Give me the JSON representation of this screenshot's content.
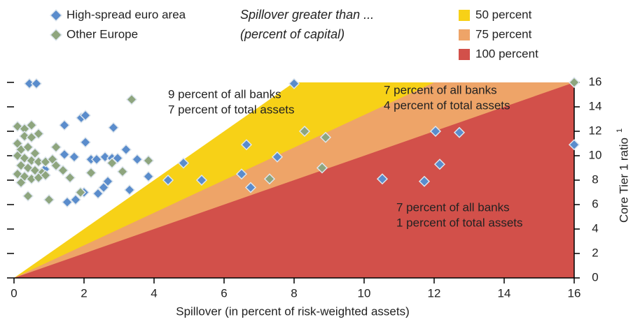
{
  "chart_data": {
    "type": "scatter",
    "legend_title": [
      "Spillover greater than ...",
      "(percent of capital)"
    ],
    "xlabel": "Spillover (in percent of risk-weighted assets)",
    "ylabel": "Core Tier 1 ratio",
    "ylabel_note": "1",
    "xlim": [
      0,
      16
    ],
    "xticks": [
      0,
      2,
      4,
      6,
      8,
      10,
      12,
      14,
      16
    ],
    "ylim": [
      0,
      16
    ],
    "yticks": [
      0,
      2,
      4,
      6,
      8,
      10,
      12,
      14,
      16
    ],
    "regions": [
      {
        "label": "50 percent",
        "threshold": 50,
        "color": "#f7d117"
      },
      {
        "label": "75 percent",
        "threshold": 75,
        "color": "#eea468"
      },
      {
        "label": "100 percent",
        "threshold": 100,
        "color": "#d2504a"
      }
    ],
    "annotations": [
      [
        "9 percent of all banks",
        "7 percent of total assets"
      ],
      [
        "7 percent of all banks",
        "4 percent of total assets"
      ],
      [
        "7 percent of all banks",
        "1 percent of total assets"
      ]
    ],
    "series": [
      {
        "name": "High-spread euro area",
        "color": "#5a8ccc",
        "x": [
          0.44,
          0.64,
          8,
          1.44,
          1.92,
          2.04,
          2.84,
          2.04,
          1.44,
          1.72,
          0.88,
          2.2,
          2.36,
          2.6,
          2.8,
          3.2,
          2.96,
          3.52,
          2.68,
          2.56,
          2.4,
          2.0,
          1.52,
          1.76,
          3.3,
          3.84,
          4.4,
          4.84,
          5.36,
          6.5,
          6.64,
          6.76,
          7.52,
          10.52,
          11.72,
          12.04,
          12.16,
          12.72,
          16
        ],
        "values": [
          15.9,
          15.9,
          15.9,
          12.5,
          13.1,
          13.3,
          12.3,
          11.1,
          10.1,
          9.9,
          8.9,
          9.7,
          9.7,
          9.9,
          9.8,
          10.5,
          9.8,
          9.7,
          7.9,
          7.4,
          6.9,
          7.0,
          6.2,
          6.4,
          7.2,
          8.3,
          8.0,
          9.4,
          8.0,
          8.5,
          10.9,
          7.4,
          9.9,
          8.1,
          7.9,
          12.0,
          9.3,
          11.9,
          10.9
        ]
      },
      {
        "name": "Other Europe",
        "color": "#8ea57e",
        "x": [
          0.1,
          0.3,
          0.5,
          0.3,
          0.1,
          0.5,
          0.7,
          0.2,
          0.4,
          0.6,
          0.1,
          0.3,
          0.5,
          0.7,
          0.9,
          0.2,
          0.4,
          0.6,
          0.8,
          0.1,
          0.3,
          0.5,
          0.7,
          0.9,
          1.1,
          1.2,
          1.4,
          1.6,
          0.4,
          1.0,
          1.2,
          0.2,
          3.36,
          3.84,
          3.1,
          2.2,
          2.8,
          1.9,
          8.3,
          8.9,
          7.3,
          8.8,
          16
        ],
        "values": [
          12.4,
          12.2,
          12.5,
          11.6,
          11.0,
          11.5,
          11.8,
          10.5,
          10.7,
          10.2,
          10.0,
          9.8,
          9.6,
          9.5,
          9.5,
          9.2,
          9.0,
          8.8,
          8.6,
          8.5,
          8.3,
          8.1,
          8.2,
          8.4,
          9.7,
          10.7,
          8.8,
          8.2,
          6.7,
          6.4,
          9.2,
          7.8,
          14.6,
          9.6,
          8.7,
          8.6,
          9.4,
          7.0,
          12.0,
          11.5,
          8.1,
          9.0,
          16
        ]
      }
    ]
  }
}
